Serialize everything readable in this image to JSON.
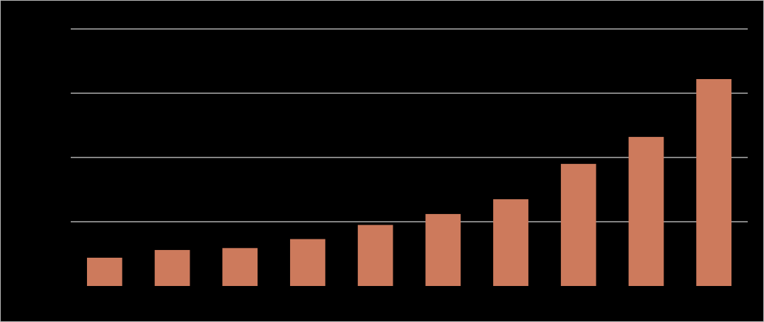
{
  "chart_data": {
    "type": "bar",
    "categories": [
      null,
      null,
      null,
      null,
      null,
      null,
      null,
      null,
      null,
      null
    ],
    "values": [
      0.44,
      0.56,
      0.59,
      0.73,
      0.95,
      1.12,
      1.35,
      1.9,
      2.32,
      3.22
    ],
    "color": "#cd7a5c",
    "ylim": [
      0,
      4
    ],
    "yticks": [
      1,
      2,
      3,
      4
    ],
    "grid": true
  }
}
